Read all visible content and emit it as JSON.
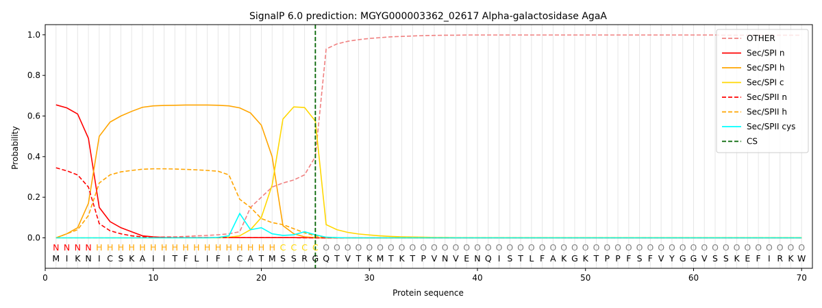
{
  "chart_data": {
    "type": "line",
    "title": "SignalP 6.0 prediction: MGYG000003362_02617 Alpha-galactosidase AgaA",
    "xlabel": "Protein sequence",
    "ylabel": "Probability",
    "xlim": [
      0,
      71
    ],
    "ylim": [
      -0.15,
      1.05
    ],
    "xticks": [
      0,
      10,
      20,
      30,
      40,
      50,
      60,
      70
    ],
    "yticks": [
      0.0,
      0.2,
      0.4,
      0.6,
      0.8,
      1.0
    ],
    "xtick_labels": [
      "0",
      "10",
      "20",
      "30",
      "40",
      "50",
      "60",
      "70"
    ],
    "ytick_labels": [
      "0.0",
      "0.2",
      "0.4",
      "0.6",
      "0.8",
      "1.0"
    ],
    "legend_position": "top-right",
    "x": [
      1,
      2,
      3,
      4,
      5,
      6,
      7,
      8,
      9,
      10,
      11,
      12,
      13,
      14,
      15,
      16,
      17,
      18,
      19,
      20,
      21,
      22,
      23,
      24,
      25,
      26,
      27,
      28,
      29,
      30,
      31,
      32,
      33,
      34,
      35,
      36,
      37,
      38,
      39,
      40,
      41,
      42,
      43,
      44,
      45,
      46,
      47,
      48,
      49,
      50,
      51,
      52,
      53,
      54,
      55,
      56,
      57,
      58,
      59,
      60,
      61,
      62,
      63,
      64,
      65,
      66,
      67,
      68,
      69,
      70
    ],
    "sequence": [
      "M",
      "I",
      "K",
      "N",
      "I",
      "C",
      "S",
      "K",
      "A",
      "I",
      "I",
      "T",
      "F",
      "L",
      "I",
      "F",
      "I",
      "C",
      "A",
      "T",
      "M",
      "S",
      "S",
      "R",
      "G",
      "Q",
      "T",
      "V",
      "T",
      "K",
      "M",
      "T",
      "K",
      "T",
      "P",
      "V",
      "N",
      "V",
      "E",
      "N",
      "Q",
      "I",
      "S",
      "T",
      "L",
      "F",
      "A",
      "K",
      "G",
      "K",
      "T",
      "P",
      "P",
      "F",
      "S",
      "F",
      "V",
      "Y",
      "G",
      "G",
      "V",
      "S",
      "S",
      "K",
      "E",
      "F",
      "I",
      "R",
      "K",
      "W"
    ],
    "region_labels": [
      "N",
      "N",
      "N",
      "N",
      "H",
      "H",
      "H",
      "H",
      "H",
      "H",
      "H",
      "H",
      "H",
      "H",
      "H",
      "H",
      "H",
      "H",
      "H",
      "H",
      "H",
      "C",
      "C",
      "C",
      "C",
      "O",
      "O",
      "O",
      "O",
      "O",
      "O",
      "O",
      "O",
      "O",
      "O",
      "O",
      "O",
      "O",
      "O",
      "O",
      "O",
      "O",
      "O",
      "O",
      "O",
      "O",
      "O",
      "O",
      "O",
      "O",
      "O",
      "O",
      "O",
      "O",
      "O",
      "O",
      "O",
      "O",
      "O",
      "O",
      "O",
      "O",
      "O",
      "O",
      "O",
      "O",
      "O",
      "O",
      "O",
      "O"
    ],
    "region_colors": {
      "N": "#ff0000",
      "H": "#ffa500",
      "C": "#ffd700",
      "O": "#808080"
    },
    "cleavage_site": 25,
    "series": [
      {
        "name": "OTHER",
        "color": "#f08080",
        "dash": "dashed",
        "values": [
          0.0,
          0.0,
          0.0,
          0.0,
          0.0,
          0.0,
          0.0,
          0.0,
          0.0,
          0.0,
          0.005,
          0.005,
          0.007,
          0.01,
          0.012,
          0.015,
          0.02,
          0.03,
          0.15,
          0.2,
          0.25,
          0.27,
          0.285,
          0.31,
          0.4,
          0.93,
          0.955,
          0.968,
          0.976,
          0.982,
          0.986,
          0.99,
          0.992,
          0.994,
          0.996,
          0.997,
          0.998,
          0.998,
          0.999,
          0.999,
          0.999,
          0.999,
          0.999,
          0.999,
          0.999,
          0.999,
          0.999,
          0.999,
          0.999,
          0.999,
          0.999,
          0.999,
          0.999,
          0.999,
          0.999,
          0.999,
          0.999,
          0.999,
          0.999,
          0.999,
          0.999,
          0.999,
          0.998,
          0.998,
          0.998,
          0.998,
          0.998,
          0.998,
          0.998,
          0.998
        ]
      },
      {
        "name": "Sec/SPI n",
        "color": "#ff0000",
        "dash": "solid",
        "values": [
          0.655,
          0.64,
          0.61,
          0.49,
          0.15,
          0.08,
          0.05,
          0.03,
          0.01,
          0.005,
          0.002,
          0.001,
          0.001,
          0.001,
          0.001,
          0.001,
          0.001,
          0.001,
          0.001,
          0.001,
          0.001,
          0.001,
          0.001,
          0.001,
          0.0,
          0.0,
          0.0,
          0.0,
          0.0,
          0.0,
          0.0,
          0.0,
          0.0,
          0.0,
          0.0,
          0.0,
          0.0,
          0.0,
          0.0,
          0.0,
          0.0,
          0.0,
          0.0,
          0.0,
          0.0,
          0.0,
          0.0,
          0.0,
          0.0,
          0.0,
          0.0,
          0.0,
          0.0,
          0.0,
          0.0,
          0.0,
          0.0,
          0.0,
          0.0,
          0.0,
          0.0,
          0.0,
          0.0,
          0.0,
          0.0,
          0.0,
          0.0,
          0.0,
          0.0,
          0.0
        ]
      },
      {
        "name": "Sec/SPI h",
        "color": "#ffa500",
        "dash": "solid",
        "values": [
          0.0,
          0.02,
          0.05,
          0.17,
          0.5,
          0.57,
          0.6,
          0.623,
          0.643,
          0.65,
          0.652,
          0.653,
          0.654,
          0.654,
          0.654,
          0.653,
          0.65,
          0.64,
          0.615,
          0.555,
          0.4,
          0.06,
          0.02,
          0.005,
          0.001,
          0.0,
          0.0,
          0.0,
          0.0,
          0.0,
          0.0,
          0.0,
          0.0,
          0.0,
          0.0,
          0.0,
          0.0,
          0.0,
          0.0,
          0.0,
          0.0,
          0.0,
          0.0,
          0.0,
          0.0,
          0.0,
          0.0,
          0.0,
          0.0,
          0.0,
          0.0,
          0.0,
          0.0,
          0.0,
          0.0,
          0.0,
          0.0,
          0.0,
          0.0,
          0.0,
          0.0,
          0.0,
          0.0,
          0.0,
          0.0,
          0.0,
          0.0,
          0.0,
          0.0,
          0.0
        ]
      },
      {
        "name": "Sec/SPI c",
        "color": "#ffd700",
        "dash": "solid",
        "values": [
          0.0,
          0.0,
          0.0,
          0.0,
          0.0,
          0.0,
          0.0,
          0.0,
          0.0,
          0.0,
          0.0,
          0.0,
          0.0,
          0.0,
          0.0,
          0.0,
          0.003,
          0.01,
          0.04,
          0.1,
          0.26,
          0.585,
          0.645,
          0.642,
          0.575,
          0.065,
          0.04,
          0.027,
          0.019,
          0.014,
          0.01,
          0.007,
          0.005,
          0.004,
          0.003,
          0.002,
          0.002,
          0.001,
          0.001,
          0.001,
          0.001,
          0.001,
          0.001,
          0.001,
          0.001,
          0.001,
          0.001,
          0.001,
          0.001,
          0.001,
          0.001,
          0.001,
          0.001,
          0.001,
          0.001,
          0.001,
          0.001,
          0.001,
          0.001,
          0.001,
          0.001,
          0.001,
          0.001,
          0.001,
          0.001,
          0.001,
          0.001,
          0.001,
          0.001,
          0.001
        ]
      },
      {
        "name": "Sec/SPII n",
        "color": "#ff0000",
        "dash": "dashed",
        "values": [
          0.345,
          0.33,
          0.31,
          0.25,
          0.07,
          0.035,
          0.02,
          0.01,
          0.005,
          0.003,
          0.002,
          0.001,
          0.001,
          0.001,
          0.001,
          0.001,
          0.001,
          0.001,
          0.001,
          0.001,
          0.001,
          0.001,
          0.001,
          0.0,
          0.0,
          0.0,
          0.0,
          0.0,
          0.0,
          0.0,
          0.0,
          0.0,
          0.0,
          0.0,
          0.0,
          0.0,
          0.0,
          0.0,
          0.0,
          0.0,
          0.0,
          0.0,
          0.0,
          0.0,
          0.0,
          0.0,
          0.0,
          0.0,
          0.0,
          0.0,
          0.0,
          0.0,
          0.0,
          0.0,
          0.0,
          0.0,
          0.0,
          0.0,
          0.0,
          0.0,
          0.0,
          0.0,
          0.0,
          0.0,
          0.0,
          0.0,
          0.0,
          0.0,
          0.0,
          0.0
        ]
      },
      {
        "name": "Sec/SPII h",
        "color": "#ffa500",
        "dash": "dashed",
        "values": [
          0.0,
          0.02,
          0.04,
          0.11,
          0.27,
          0.31,
          0.325,
          0.332,
          0.338,
          0.34,
          0.34,
          0.339,
          0.337,
          0.335,
          0.332,
          0.328,
          0.31,
          0.19,
          0.15,
          0.095,
          0.075,
          0.065,
          0.045,
          0.025,
          0.01,
          0.003,
          0.001,
          0.0,
          0.0,
          0.0,
          0.0,
          0.0,
          0.0,
          0.0,
          0.0,
          0.0,
          0.0,
          0.0,
          0.0,
          0.0,
          0.0,
          0.0,
          0.0,
          0.0,
          0.0,
          0.0,
          0.0,
          0.0,
          0.0,
          0.0,
          0.0,
          0.0,
          0.0,
          0.0,
          0.0,
          0.0,
          0.0,
          0.0,
          0.0,
          0.0,
          0.0,
          0.0,
          0.0,
          0.0,
          0.0,
          0.0,
          0.0,
          0.0,
          0.0,
          0.0
        ]
      },
      {
        "name": "Sec/SPII cys",
        "color": "#00ffff",
        "dash": "solid",
        "values": [
          0.0,
          0.0,
          0.0,
          0.0,
          0.0,
          0.0,
          0.0,
          0.0,
          0.0,
          0.0,
          0.0,
          0.0,
          0.0,
          0.0,
          0.0,
          0.002,
          0.01,
          0.12,
          0.04,
          0.05,
          0.02,
          0.012,
          0.015,
          0.03,
          0.015,
          0.003,
          0.001,
          0.0,
          0.0,
          0.0,
          0.0,
          0.0,
          0.0,
          0.0,
          0.0,
          0.0,
          0.0,
          0.0,
          0.0,
          0.0,
          0.0,
          0.0,
          0.0,
          0.0,
          0.0,
          0.0,
          0.0,
          0.0,
          0.0,
          0.0,
          0.0,
          0.0,
          0.0,
          0.0,
          0.0,
          0.0,
          0.0,
          0.0,
          0.0,
          0.0,
          0.0,
          0.0,
          0.0,
          0.0,
          0.0,
          0.0,
          0.0,
          0.0,
          0.0,
          0.0
        ]
      }
    ],
    "cs_legend": {
      "name": "CS",
      "color": "#006400",
      "dash": "dashed"
    }
  }
}
